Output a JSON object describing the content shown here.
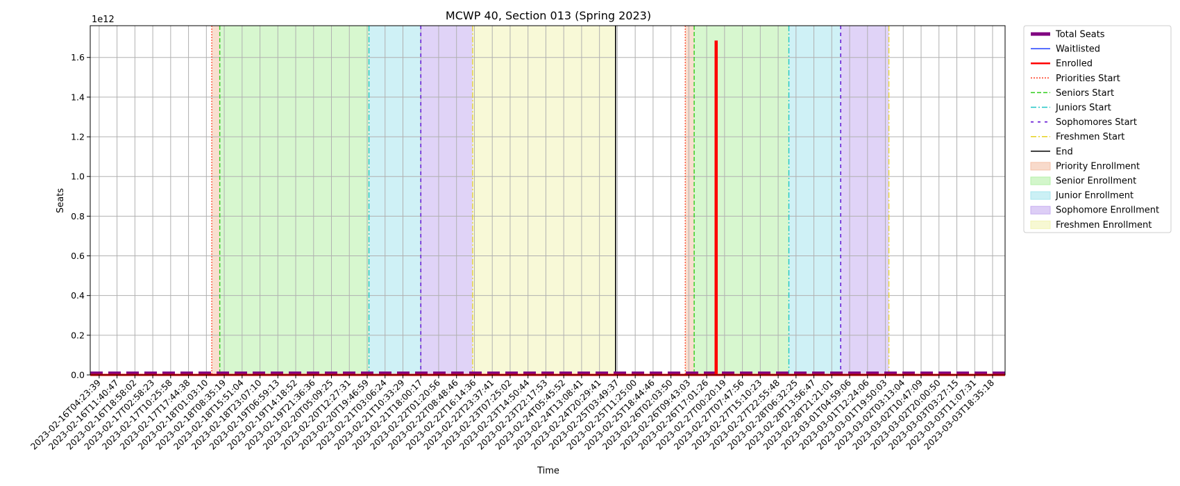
{
  "chart_data": {
    "type": "line",
    "title": "MCWP 40, Section 013 (Spring 2023)",
    "xlabel": "Time",
    "ylabel": "Seats",
    "y_scale_label": "1e12",
    "ylim": [
      0,
      1.76
    ],
    "y_ticks": [
      "0.0",
      "0.2",
      "0.4",
      "0.6",
      "0.8",
      "1.0",
      "1.2",
      "1.4",
      "1.6"
    ],
    "grid": true,
    "legend_position": "outside-right",
    "x_ticks": [
      "2023-02-16T04:23:39",
      "2023-02-16T11:40:47",
      "2023-02-16T18:58:02",
      "2023-02-17T02:58:23",
      "2023-02-17T10:25:58",
      "2023-02-17T17:44:38",
      "2023-02-18T01:03:10",
      "2023-02-18T08:35:19",
      "2023-02-18T15:51:04",
      "2023-02-18T23:07:10",
      "2023-02-19T06:59:13",
      "2023-02-19T14:18:52",
      "2023-02-19T21:36:36",
      "2023-02-20T05:09:25",
      "2023-02-20T12:27:31",
      "2023-02-20T19:46:59",
      "2023-02-21T03:06:24",
      "2023-02-21T10:33:29",
      "2023-02-21T18:00:17",
      "2023-02-22T01:20:56",
      "2023-02-22T08:48:46",
      "2023-02-22T16:14:36",
      "2023-02-22T23:37:41",
      "2023-02-23T07:25:02",
      "2023-02-23T14:50:44",
      "2023-02-23T22:17:53",
      "2023-02-24T05:45:52",
      "2023-02-24T13:08:41",
      "2023-02-24T20:29:41",
      "2023-02-25T03:49:37",
      "2023-02-25T11:25:00",
      "2023-02-25T18:44:46",
      "2023-02-26T02:03:50",
      "2023-02-26T09:43:03",
      "2023-02-26T17:01:26",
      "2023-02-27T00:20:19",
      "2023-02-27T07:47:56",
      "2023-02-27T15:10:23",
      "2023-02-27T22:55:48",
      "2023-02-28T06:32:25",
      "2023-02-28T13:56:47",
      "2023-02-28T21:21:01",
      "2023-03-01T04:59:06",
      "2023-03-01T12:24:06",
      "2023-03-01T19:50:03",
      "2023-03-02T03:13:04",
      "2023-03-02T10:47:09",
      "2023-03-02T20:00:50",
      "2023-03-03T03:27:15",
      "2023-03-03T11:07:31",
      "2023-03-03T18:35:18"
    ],
    "x_range": [
      -0.5,
      50.7
    ],
    "phases": [
      {
        "name": "Priority Enrollment",
        "start": 6.3,
        "end": 6.75,
        "color": "#f4c2a8"
      },
      {
        "name": "Senior Enrollment",
        "start": 6.75,
        "end": 15.1,
        "color": "#b6f0a8"
      },
      {
        "name": "Junior Enrollment",
        "start": 15.1,
        "end": 18.0,
        "color": "#a8e6ee"
      },
      {
        "name": "Sophomore Enrollment",
        "start": 18.0,
        "end": 20.9,
        "color": "#c7aef0"
      },
      {
        "name": "Freshmen Enrollment",
        "start": 20.9,
        "end": 28.9,
        "color": "#f2f4b6"
      },
      {
        "name": "Priority Enrollment",
        "start": 32.8,
        "end": 33.3,
        "color": "#f4c2a8"
      },
      {
        "name": "Senior Enrollment",
        "start": 33.3,
        "end": 38.6,
        "color": "#b6f0a8"
      },
      {
        "name": "Junior Enrollment",
        "start": 38.6,
        "end": 41.5,
        "color": "#a8e6ee"
      },
      {
        "name": "Sophomore Enrollment",
        "start": 41.5,
        "end": 44.2,
        "color": "#c7aef0"
      }
    ],
    "events": [
      {
        "name": "Priorities Start",
        "x": 6.3,
        "color": "#ff3b1f",
        "dash": "2,2",
        "width": 1.2
      },
      {
        "name": "Seniors Start",
        "x": 6.75,
        "color": "#2ecc1a",
        "dash": "6,3",
        "width": 1.4
      },
      {
        "name": "Juniors Start",
        "x": 15.1,
        "color": "#1fc6c6",
        "dash": "8,3,2,3",
        "width": 1.4
      },
      {
        "name": "Sophomores Start",
        "x": 18.0,
        "color": "#6a1fd6",
        "dash": "5,5",
        "width": 1.6
      },
      {
        "name": "Freshmen Start",
        "x": 20.9,
        "color": "#e6d21f",
        "dash": "8,3,2,3",
        "width": 1.2
      },
      {
        "name": "End",
        "x": 28.9,
        "color": "#000000",
        "dash": "",
        "width": 1.6
      },
      {
        "name": "Priorities Start",
        "x": 32.8,
        "color": "#ff3b1f",
        "dash": "2,2",
        "width": 1.2
      },
      {
        "name": "Seniors Start",
        "x": 33.3,
        "color": "#2ecc1a",
        "dash": "6,3",
        "width": 1.4
      },
      {
        "name": "Juniors Start",
        "x": 38.6,
        "color": "#1fc6c6",
        "dash": "8,3,2,3",
        "width": 1.4
      },
      {
        "name": "Sophomores Start",
        "x": 41.5,
        "color": "#6a1fd6",
        "dash": "5,5",
        "width": 1.6
      },
      {
        "name": "Freshmen Start",
        "x": 44.2,
        "color": "#e6d21f",
        "dash": "8,3,2,3",
        "width": 1.2
      }
    ],
    "series": [
      {
        "name": "Total Seats",
        "color": "#800080",
        "style": "dashed-thick",
        "points": [
          [
            -0.5,
            0.01
          ],
          [
            50.7,
            0.01
          ]
        ]
      },
      {
        "name": "Waitlisted",
        "color": "#1f3fff",
        "style": "solid",
        "points": [
          [
            -0.5,
            0.0
          ],
          [
            50.7,
            0.0
          ]
        ]
      },
      {
        "name": "Enrolled",
        "color": "#ff0000",
        "style": "solid-thick",
        "points": [
          [
            -0.5,
            0.0
          ],
          [
            34.5,
            0.0
          ],
          [
            34.5,
            1.68
          ],
          [
            34.56,
            1.68
          ],
          [
            34.56,
            0.0
          ],
          [
            50.7,
            0.0
          ]
        ]
      }
    ],
    "legend": [
      {
        "label": "Total Seats",
        "kind": "line",
        "color": "#800080",
        "dash": "",
        "width": 5
      },
      {
        "label": "Waitlisted",
        "kind": "line",
        "color": "#1f3fff",
        "dash": "",
        "width": 1.5
      },
      {
        "label": "Enrolled",
        "kind": "line",
        "color": "#ff0000",
        "dash": "",
        "width": 2.5
      },
      {
        "label": "Priorities Start",
        "kind": "line",
        "color": "#ff3b1f",
        "dash": "2,2",
        "width": 1.5
      },
      {
        "label": "Seniors Start",
        "kind": "line",
        "color": "#2ecc1a",
        "dash": "6,3",
        "width": 1.5
      },
      {
        "label": "Juniors Start",
        "kind": "line",
        "color": "#1fc6c6",
        "dash": "8,3,2,3",
        "width": 1.5
      },
      {
        "label": "Sophomores Start",
        "kind": "line",
        "color": "#6a1fd6",
        "dash": "4,6",
        "width": 1.8
      },
      {
        "label": "Freshmen Start",
        "kind": "line",
        "color": "#e6d21f",
        "dash": "8,3,2,3",
        "width": 1.5
      },
      {
        "label": "End",
        "kind": "line",
        "color": "#000000",
        "dash": "",
        "width": 1.5
      },
      {
        "label": "Priority Enrollment",
        "kind": "patch",
        "color": "#f4c2a8"
      },
      {
        "label": "Senior Enrollment",
        "kind": "patch",
        "color": "#b6f0a8"
      },
      {
        "label": "Junior Enrollment",
        "kind": "patch",
        "color": "#a8e6ee"
      },
      {
        "label": "Sophomore Enrollment",
        "kind": "patch",
        "color": "#c7aef0"
      },
      {
        "label": "Freshmen Enrollment",
        "kind": "patch",
        "color": "#f2f4b6"
      }
    ]
  }
}
